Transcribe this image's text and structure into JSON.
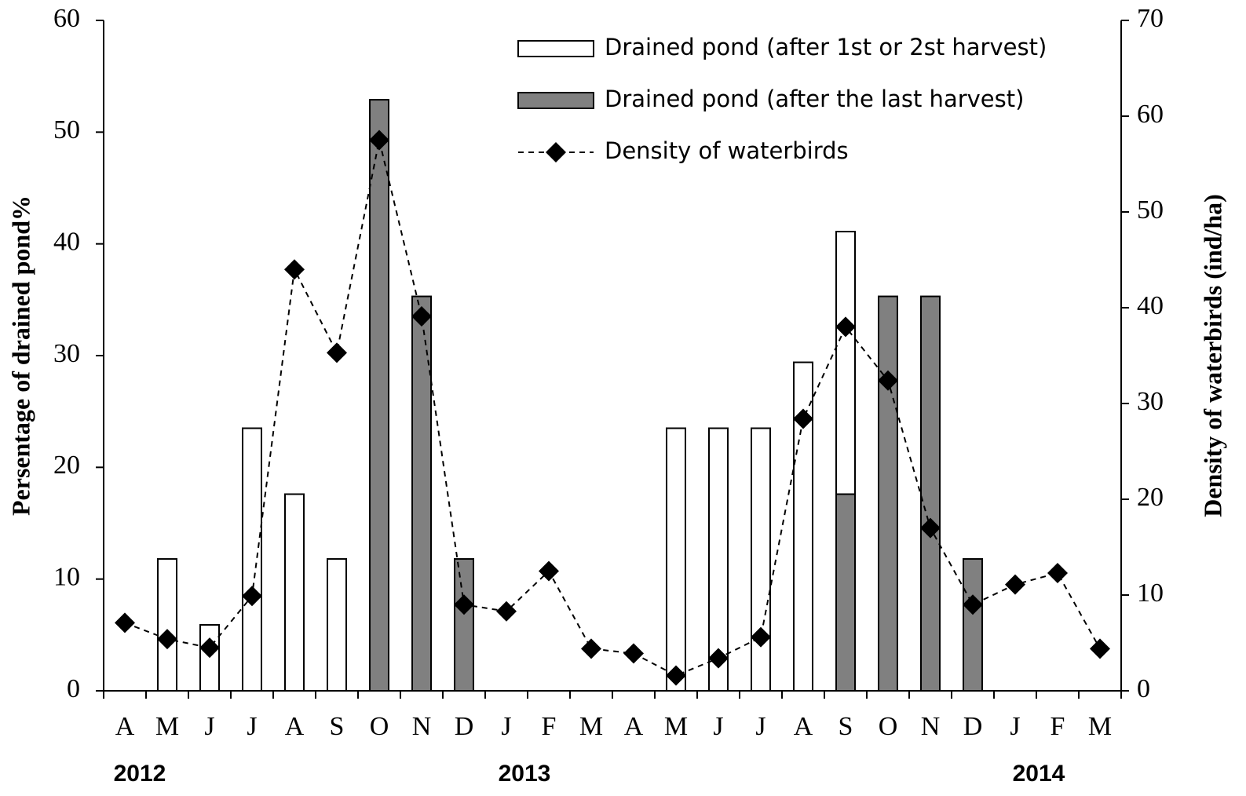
{
  "chart_data": {
    "type": "bar_line",
    "categories": [
      "A",
      "M",
      "J",
      "J",
      "A",
      "S",
      "O",
      "N",
      "D",
      "J",
      "F",
      "M",
      "A",
      "M",
      "J",
      "J",
      "A",
      "S",
      "O",
      "N",
      "D",
      "J",
      "F",
      "M"
    ],
    "years": [
      "2012",
      "2013",
      "2014"
    ],
    "ylabel": "Persentage of drained pond%",
    "y2label": "Density of waterbirds (ind/ha)",
    "ylim": [
      0,
      60
    ],
    "yticks": [
      0,
      10,
      20,
      30,
      40,
      50,
      60
    ],
    "y2lim": [
      0,
      70
    ],
    "y2ticks": [
      0,
      10,
      20,
      30,
      40,
      50,
      60,
      70
    ],
    "series": [
      {
        "name": "Drained pond (after 1st or 2st harvest)",
        "type": "bar",
        "color": "#ffffff",
        "values": [
          0,
          11.8,
          5.9,
          23.5,
          17.6,
          11.8,
          0,
          0,
          0,
          0,
          0,
          0,
          0,
          23.5,
          23.5,
          23.5,
          29.4,
          23.5,
          0,
          0,
          0,
          0,
          0,
          0
        ]
      },
      {
        "name": "Drained pond (after the last harvest)",
        "type": "bar",
        "color": "#808080",
        "values": [
          0,
          0,
          0,
          0,
          0,
          0,
          52.9,
          35.3,
          11.8,
          0,
          0,
          0,
          0,
          0,
          0,
          0,
          0,
          17.6,
          35.3,
          35.3,
          11.8,
          0,
          0,
          0
        ]
      },
      {
        "name": "Density of waterbirds",
        "type": "line",
        "axis": "y2",
        "color": "#000000",
        "values": [
          7.1,
          5.4,
          4.5,
          9.9,
          44.0,
          35.3,
          57.5,
          39.1,
          9.0,
          8.3,
          12.5,
          4.4,
          3.9,
          1.6,
          3.4,
          5.6,
          28.4,
          38.0,
          32.4,
          17.0,
          9.0,
          11.1,
          12.3,
          4.4
        ]
      }
    ]
  }
}
